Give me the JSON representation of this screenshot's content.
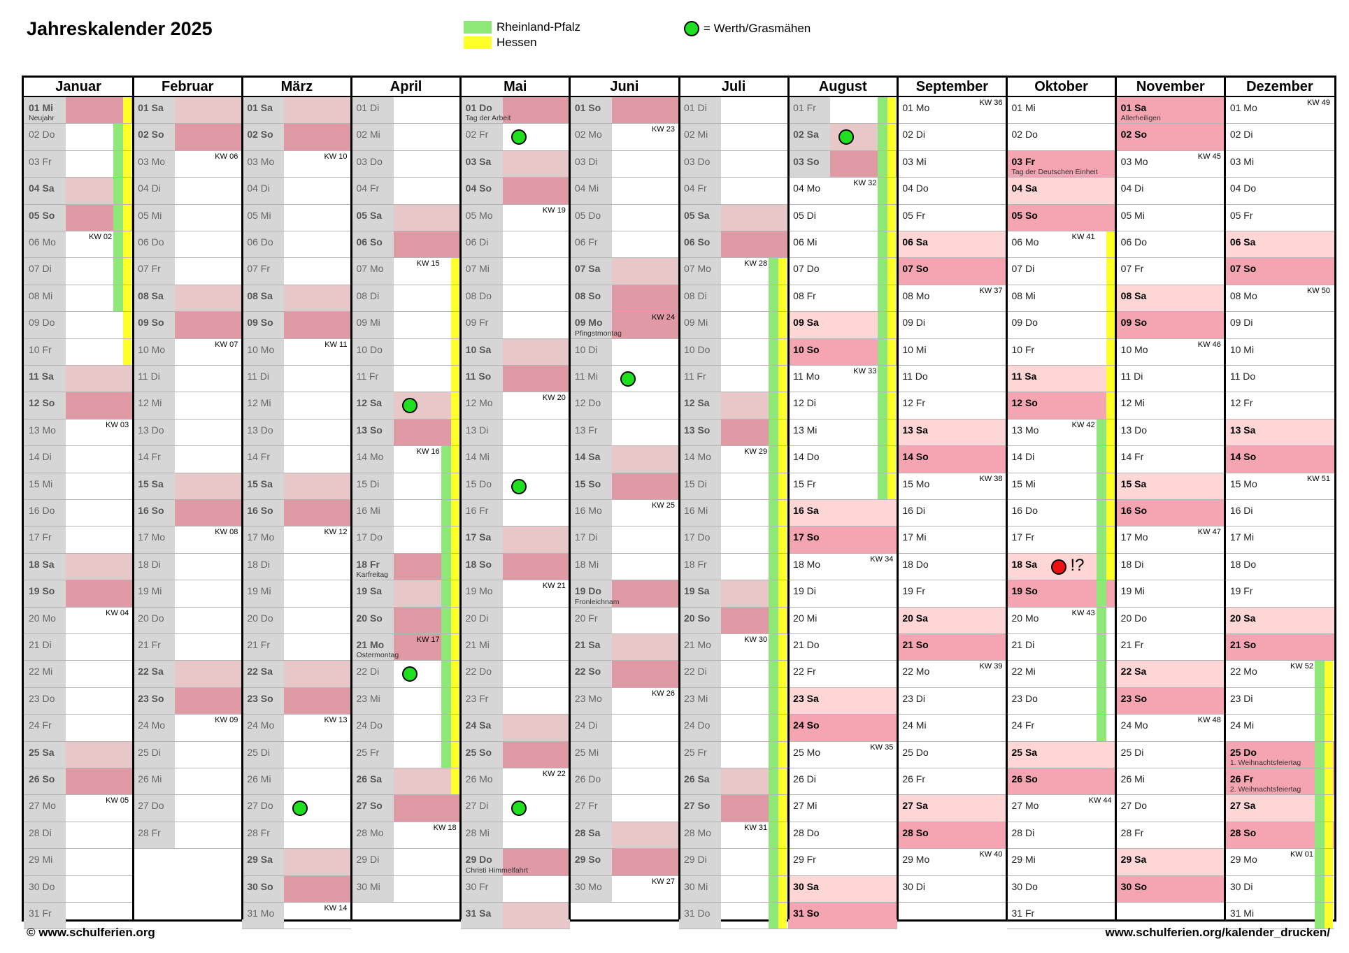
{
  "title": "Jahreskalender 2025",
  "legend": {
    "rlp_label": "Rheinland-Pfalz",
    "hessen_label": "Hessen",
    "dot_label": "= Werth/Grasmähen",
    "colors": {
      "rlp": "#8ee878",
      "hessen": "#ffff2a",
      "dot": "#1ee01e"
    }
  },
  "footer": {
    "left": "© www.schulferien.org",
    "right": "www.schulferien.org/kalender_drucken/"
  },
  "weekday_abbr": [
    "Mo",
    "Di",
    "Mi",
    "Do",
    "Fr",
    "Sa",
    "So"
  ],
  "kw_prefix": "KW",
  "year": 2025,
  "months": [
    {
      "name": "Januar",
      "days": 31,
      "start_weekday": 2
    },
    {
      "name": "Februar",
      "days": 28,
      "start_weekday": 5
    },
    {
      "name": "März",
      "days": 31,
      "start_weekday": 5
    },
    {
      "name": "April",
      "days": 30,
      "start_weekday": 1
    },
    {
      "name": "Mai",
      "days": 31,
      "start_weekday": 3
    },
    {
      "name": "Juni",
      "days": 30,
      "start_weekday": 6
    },
    {
      "name": "Juli",
      "days": 31,
      "start_weekday": 1
    },
    {
      "name": "August",
      "days": 31,
      "start_weekday": 4
    },
    {
      "name": "September",
      "days": 30,
      "start_weekday": 0
    },
    {
      "name": "Oktober",
      "days": 31,
      "start_weekday": 2
    },
    {
      "name": "November",
      "days": 30,
      "start_weekday": 5
    },
    {
      "name": "Dezember",
      "days": 31,
      "start_weekday": 0
    }
  ],
  "past_until": {
    "month": 8,
    "day": 3
  },
  "holidays": [
    {
      "month": 1,
      "day": 1,
      "name": "Neujahr"
    },
    {
      "month": 4,
      "day": 18,
      "name": "Karfreitag"
    },
    {
      "month": 4,
      "day": 21,
      "name": "Ostermontag"
    },
    {
      "month": 5,
      "day": 1,
      "name": "Tag der Arbeit"
    },
    {
      "month": 5,
      "day": 29,
      "name": "Christi Himmelfahrt"
    },
    {
      "month": 6,
      "day": 9,
      "name": "Pfingstmontag"
    },
    {
      "month": 6,
      "day": 19,
      "name": "Fronleichnam"
    },
    {
      "month": 10,
      "day": 3,
      "name": "Tag der Deutschen Einheit"
    },
    {
      "month": 11,
      "day": 1,
      "name": "Allerheiligen"
    },
    {
      "month": 12,
      "day": 25,
      "name": "1. Weihnachtsfeiertag"
    },
    {
      "month": 12,
      "day": 26,
      "name": "2. Weihnachtsfeiertag"
    }
  ],
  "school_holidays": {
    "rlp": [
      {
        "month": 1,
        "from": 2,
        "to": 8
      },
      {
        "month": 4,
        "from": 14,
        "to": 25
      },
      {
        "month": 7,
        "from": 7,
        "to": 31
      },
      {
        "month": 8,
        "from": 1,
        "to": 15
      },
      {
        "month": 10,
        "from": 13,
        "to": 24
      },
      {
        "month": 12,
        "from": 22,
        "to": 31
      }
    ],
    "hessen": [
      {
        "month": 1,
        "from": 1,
        "to": 10
      },
      {
        "month": 4,
        "from": 7,
        "to": 26
      },
      {
        "month": 7,
        "from": 7,
        "to": 31
      },
      {
        "month": 8,
        "from": 1,
        "to": 15
      },
      {
        "month": 10,
        "from": 6,
        "to": 18
      },
      {
        "month": 12,
        "from": 22,
        "to": 31
      }
    ]
  },
  "dots": [
    {
      "month": 4,
      "day": 12
    },
    {
      "month": 4,
      "day": 22
    },
    {
      "month": 3,
      "day": 27
    },
    {
      "month": 5,
      "day": 2
    },
    {
      "month": 5,
      "day": 15
    },
    {
      "month": 5,
      "day": 27
    },
    {
      "month": 6,
      "day": 11
    },
    {
      "month": 8,
      "day": 2
    }
  ],
  "red_dot": {
    "month": 10,
    "day": 18,
    "note": "!?"
  }
}
